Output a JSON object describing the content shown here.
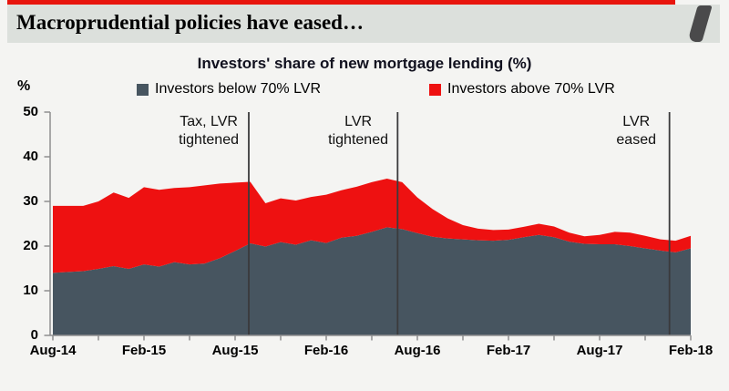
{
  "header": {
    "title": "Macroprudential policies have eased…"
  },
  "chart_data": {
    "type": "area",
    "stacked": true,
    "title": "Investors' share of new mortgage lending (%)",
    "y_axis_unit_label": "%",
    "grid": false,
    "legend_position": "top",
    "ylim": [
      0,
      50
    ],
    "y_ticks": [
      0,
      10,
      20,
      30,
      40,
      50
    ],
    "x_ticks": [
      {
        "i": 0,
        "label": "Aug-14"
      },
      {
        "i": 6,
        "label": "Feb-15"
      },
      {
        "i": 12,
        "label": "Aug-15"
      },
      {
        "i": 18,
        "label": "Feb-16"
      },
      {
        "i": 24,
        "label": "Aug-16"
      },
      {
        "i": 30,
        "label": "Feb-17"
      },
      {
        "i": 36,
        "label": "Aug-17"
      },
      {
        "i": 42,
        "label": "Feb-18"
      }
    ],
    "x": [
      "Aug-14",
      "Sep-14",
      "Oct-14",
      "Nov-14",
      "Dec-14",
      "Jan-15",
      "Feb-15",
      "Mar-15",
      "Apr-15",
      "May-15",
      "Jun-15",
      "Jul-15",
      "Aug-15",
      "Sep-15",
      "Oct-15",
      "Nov-15",
      "Dec-15",
      "Jan-16",
      "Feb-16",
      "Mar-16",
      "Apr-16",
      "May-16",
      "Jun-16",
      "Jul-16",
      "Aug-16",
      "Sep-16",
      "Oct-16",
      "Nov-16",
      "Dec-16",
      "Jan-17",
      "Feb-17",
      "Mar-17",
      "Apr-17",
      "May-17",
      "Jun-17",
      "Jul-17",
      "Aug-17",
      "Sep-17",
      "Oct-17",
      "Nov-17",
      "Dec-17",
      "Jan-18",
      "Feb-18"
    ],
    "series": [
      {
        "name": "Investors below 70% LVR",
        "color": "#475560",
        "values": [
          14.0,
          14.2,
          14.4,
          14.9,
          15.5,
          14.9,
          15.9,
          15.4,
          16.4,
          15.9,
          16.1,
          17.3,
          18.9,
          20.6,
          19.9,
          20.9,
          20.3,
          21.3,
          20.7,
          21.9,
          22.3,
          23.2,
          24.2,
          23.8,
          22.9,
          22.1,
          21.7,
          21.5,
          21.3,
          21.2,
          21.4,
          22.0,
          22.5,
          22.0,
          21.0,
          20.5,
          20.4,
          20.4,
          20.0,
          19.5,
          19.0,
          18.6,
          19.5
        ]
      },
      {
        "name": "Investors above 70% LVR",
        "color": "#ee1111",
        "values": [
          15.0,
          14.8,
          14.6,
          15.1,
          16.5,
          15.9,
          17.3,
          17.2,
          16.6,
          17.3,
          17.5,
          16.7,
          15.3,
          13.8,
          9.7,
          9.8,
          9.9,
          9.7,
          10.8,
          10.6,
          11.0,
          11.1,
          10.9,
          10.5,
          8.0,
          6.2,
          4.5,
          3.2,
          2.6,
          2.4,
          2.3,
          2.3,
          2.5,
          2.4,
          2.0,
          1.7,
          2.1,
          2.8,
          3.0,
          2.8,
          2.5,
          2.6,
          2.8
        ]
      }
    ],
    "events": [
      {
        "label": "Tax, LVR\ntightened",
        "month_index": 12.9
      },
      {
        "label": "LVR\ntightened",
        "month_index": 22.7
      },
      {
        "label": "LVR\neased",
        "month_index": 40.6
      }
    ],
    "colors": {
      "event_line": "#3a3a3c",
      "axis": "#8f8f8f"
    }
  }
}
